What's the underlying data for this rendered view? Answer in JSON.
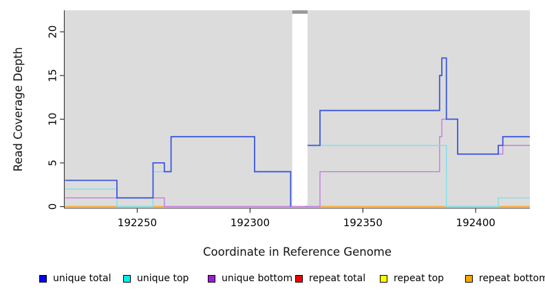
{
  "chart_data": {
    "type": "line",
    "subtype": "step-coverage",
    "xlabel": "Coordinate in Reference Genome",
    "ylabel": "Read Coverage Depth",
    "xlim": [
      192218,
      192424
    ],
    "ylim": [
      0,
      22.5
    ],
    "x_ticks": [
      192250,
      192300,
      192350,
      192400
    ],
    "y_ticks": [
      0,
      5,
      10,
      15,
      20
    ],
    "grid": false,
    "plot_bg": "#dcdcdc",
    "legend_position": "bottom",
    "gap": {
      "from": 192319,
      "to": 192325
    },
    "draw_order": [
      "repeat top",
      "repeat total",
      "repeat bottom",
      "unique bottom",
      "unique top",
      "unique total"
    ],
    "series": [
      {
        "name": "unique total",
        "line_color": "#3d56dc",
        "legend_color": "#0000ee",
        "width": 1.8,
        "breaks": [
          [
            192318,
            192325
          ]
        ],
        "values": [
          [
            192218,
            3
          ],
          [
            192241,
            1
          ],
          [
            192257,
            5
          ],
          [
            192262,
            4
          ],
          [
            192265,
            8
          ],
          [
            192302,
            4
          ],
          [
            192318,
            0
          ],
          [
            192325,
            7
          ],
          [
            192331,
            11
          ],
          [
            192384,
            15
          ],
          [
            192385,
            17
          ],
          [
            192387,
            10
          ],
          [
            192392,
            6
          ],
          [
            192410,
            7
          ],
          [
            192412,
            8
          ],
          [
            192424,
            8
          ]
        ]
      },
      {
        "name": "unique top",
        "line_color": "#7de0ea",
        "legend_color": "#00eeee",
        "width": 1.4,
        "breaks": [
          [
            192318,
            192325
          ]
        ],
        "values": [
          [
            192218,
            2
          ],
          [
            192241,
            0
          ],
          [
            192257,
            4
          ],
          [
            192265,
            8
          ],
          [
            192302,
            4
          ],
          [
            192318,
            0
          ],
          [
            192325,
            7
          ],
          [
            192387,
            0
          ],
          [
            192410,
            1
          ],
          [
            192424,
            1
          ]
        ]
      },
      {
        "name": "unique bottom",
        "line_color": "#c07cdf",
        "legend_color": "#9a1fd0",
        "width": 1.4,
        "breaks": [],
        "values": [
          [
            192218,
            1
          ],
          [
            192262,
            0
          ],
          [
            192331,
            4
          ],
          [
            192384,
            8
          ],
          [
            192385,
            10
          ],
          [
            192392,
            6
          ],
          [
            192412,
            7
          ],
          [
            192424,
            7
          ]
        ]
      },
      {
        "name": "repeat total",
        "line_color": "#d94a5e",
        "legend_color": "#ee0000",
        "width": 1.3,
        "breaks": [],
        "values": [
          [
            192218,
            0
          ],
          [
            192424,
            0
          ]
        ]
      },
      {
        "name": "repeat top",
        "line_color": "#ffe14d",
        "legend_color": "#ffff00",
        "width": 1.3,
        "breaks": [],
        "values": [
          [
            192218,
            0
          ],
          [
            192424,
            0
          ]
        ]
      },
      {
        "name": "repeat bottom",
        "line_color": "#ffa41e",
        "legend_color": "#ffa500",
        "width": 1.3,
        "breaks": [],
        "values": [
          [
            192218,
            0
          ],
          [
            192424,
            0
          ]
        ]
      }
    ]
  },
  "legend": {
    "items": [
      {
        "label": "unique total"
      },
      {
        "label": "unique top"
      },
      {
        "label": "unique bottom"
      },
      {
        "label": "repeat total"
      },
      {
        "label": "repeat top"
      },
      {
        "label": "repeat bottom"
      }
    ]
  }
}
